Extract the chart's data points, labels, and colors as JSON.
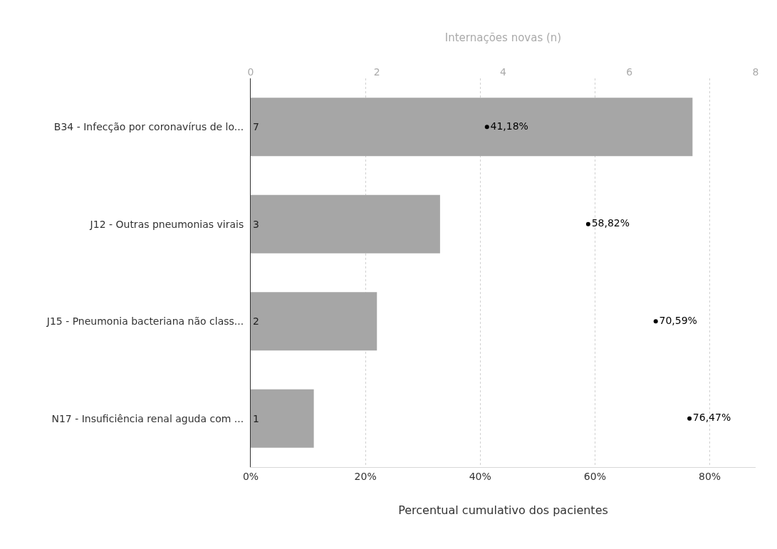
{
  "chart_data": {
    "type": "bar",
    "orientation": "horizontal",
    "categories": [
      "B34 - Infecção por coronavírus de lo...",
      "J12 - Outras pneumonias virais",
      "J15 - Pneumonia bacteriana não class...",
      "N17 - Insuficiência renal aguda com ..."
    ],
    "series": [
      {
        "type": "bar",
        "axis": "x2",
        "color": "#a6a6a6",
        "values": [
          7,
          3,
          2,
          1
        ],
        "value_labels": [
          "7",
          "3",
          "2",
          "1"
        ]
      },
      {
        "type": "scatter",
        "color": "#000000",
        "values": [
          41.18,
          58.82,
          70.59,
          76.47
        ],
        "value_labels": [
          "41,18%",
          "58,82%",
          "70,59%",
          "76,47%"
        ]
      }
    ],
    "xlabel": "Percentual cumulativo dos pacientes",
    "x2label": "Internações novas (n)",
    "xlim": [
      0,
      88
    ],
    "xticks": [
      {
        "value": 0,
        "label": "0%"
      },
      {
        "value": 20,
        "label": "20%"
      },
      {
        "value": 40,
        "label": "40%"
      },
      {
        "value": 60,
        "label": "60%"
      },
      {
        "value": 80,
        "label": "80%"
      }
    ],
    "x2lim": [
      0,
      8
    ],
    "x2ticks": [
      0,
      2,
      4,
      6,
      8
    ],
    "grid": "x",
    "marker": "circle"
  }
}
